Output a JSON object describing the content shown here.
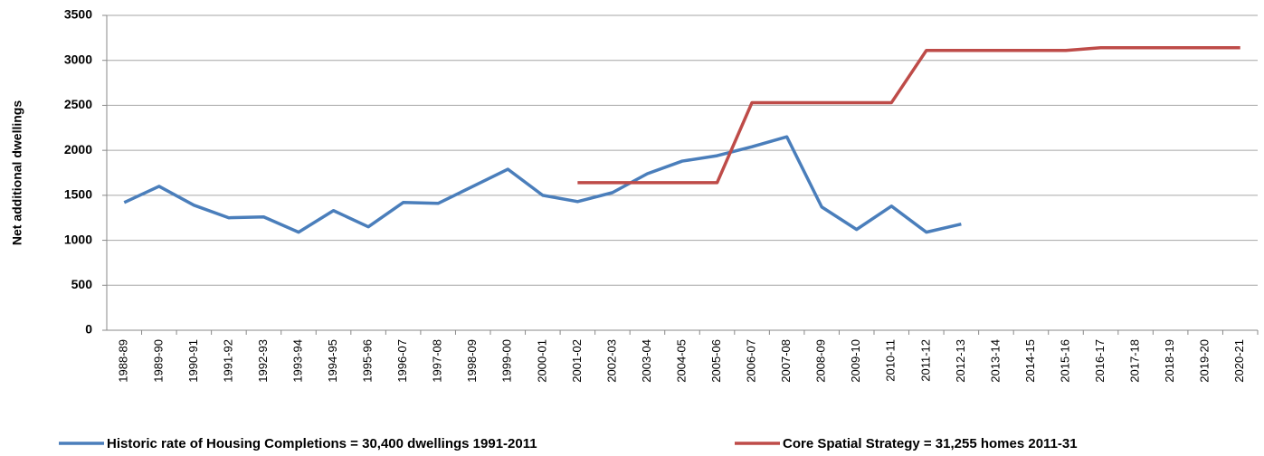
{
  "chart_data": {
    "type": "line",
    "y_label": "Net additional dwellings",
    "categories": [
      "1988-89",
      "1989-90",
      "1990-91",
      "1991-92",
      "1992-93",
      "1993-94",
      "1994-95",
      "1995-96",
      "1996-07",
      "1997-08",
      "1998-09",
      "1999-00",
      "2000-01",
      "2001-02",
      "2002-03",
      "2003-04",
      "2004-05",
      "2005-06",
      "2006-07",
      "2007-08",
      "2008-09",
      "2009-10",
      "2010-11",
      "2011-12",
      "2012-13",
      "2013-14",
      "2014-15",
      "2015-16",
      "2016-17",
      "2017-18",
      "2018-19",
      "2019-20",
      "2020-21"
    ],
    "series": [
      {
        "name": "Historic rate of Housing Completions = 30,400 dwellings 1991-2011",
        "color": "#4a7ebb",
        "values": [
          1420,
          1600,
          1390,
          1250,
          1260,
          1090,
          1330,
          1150,
          1420,
          1410,
          1600,
          1790,
          1500,
          1430,
          1530,
          1740,
          1880,
          1940,
          2040,
          2150,
          1370,
          1120,
          1380,
          1090,
          1180,
          null,
          null,
          null,
          null,
          null,
          null,
          null,
          null
        ]
      },
      {
        "name": "Core Spatial Strategy = 31,255 homes 2011-31",
        "color": "#be4b48",
        "values": [
          null,
          null,
          null,
          null,
          null,
          null,
          null,
          null,
          null,
          null,
          null,
          null,
          null,
          1640,
          1640,
          1640,
          1640,
          1640,
          2530,
          2530,
          2530,
          2530,
          2530,
          3110,
          3110,
          3110,
          3110,
          3110,
          3140,
          3140,
          3140,
          3140,
          3140
        ]
      }
    ],
    "ylim": [
      0,
      3500
    ],
    "yticks": [
      0,
      500,
      1000,
      1500,
      2000,
      2500,
      3000,
      3500
    ],
    "grid": true,
    "legend": "bottom"
  }
}
